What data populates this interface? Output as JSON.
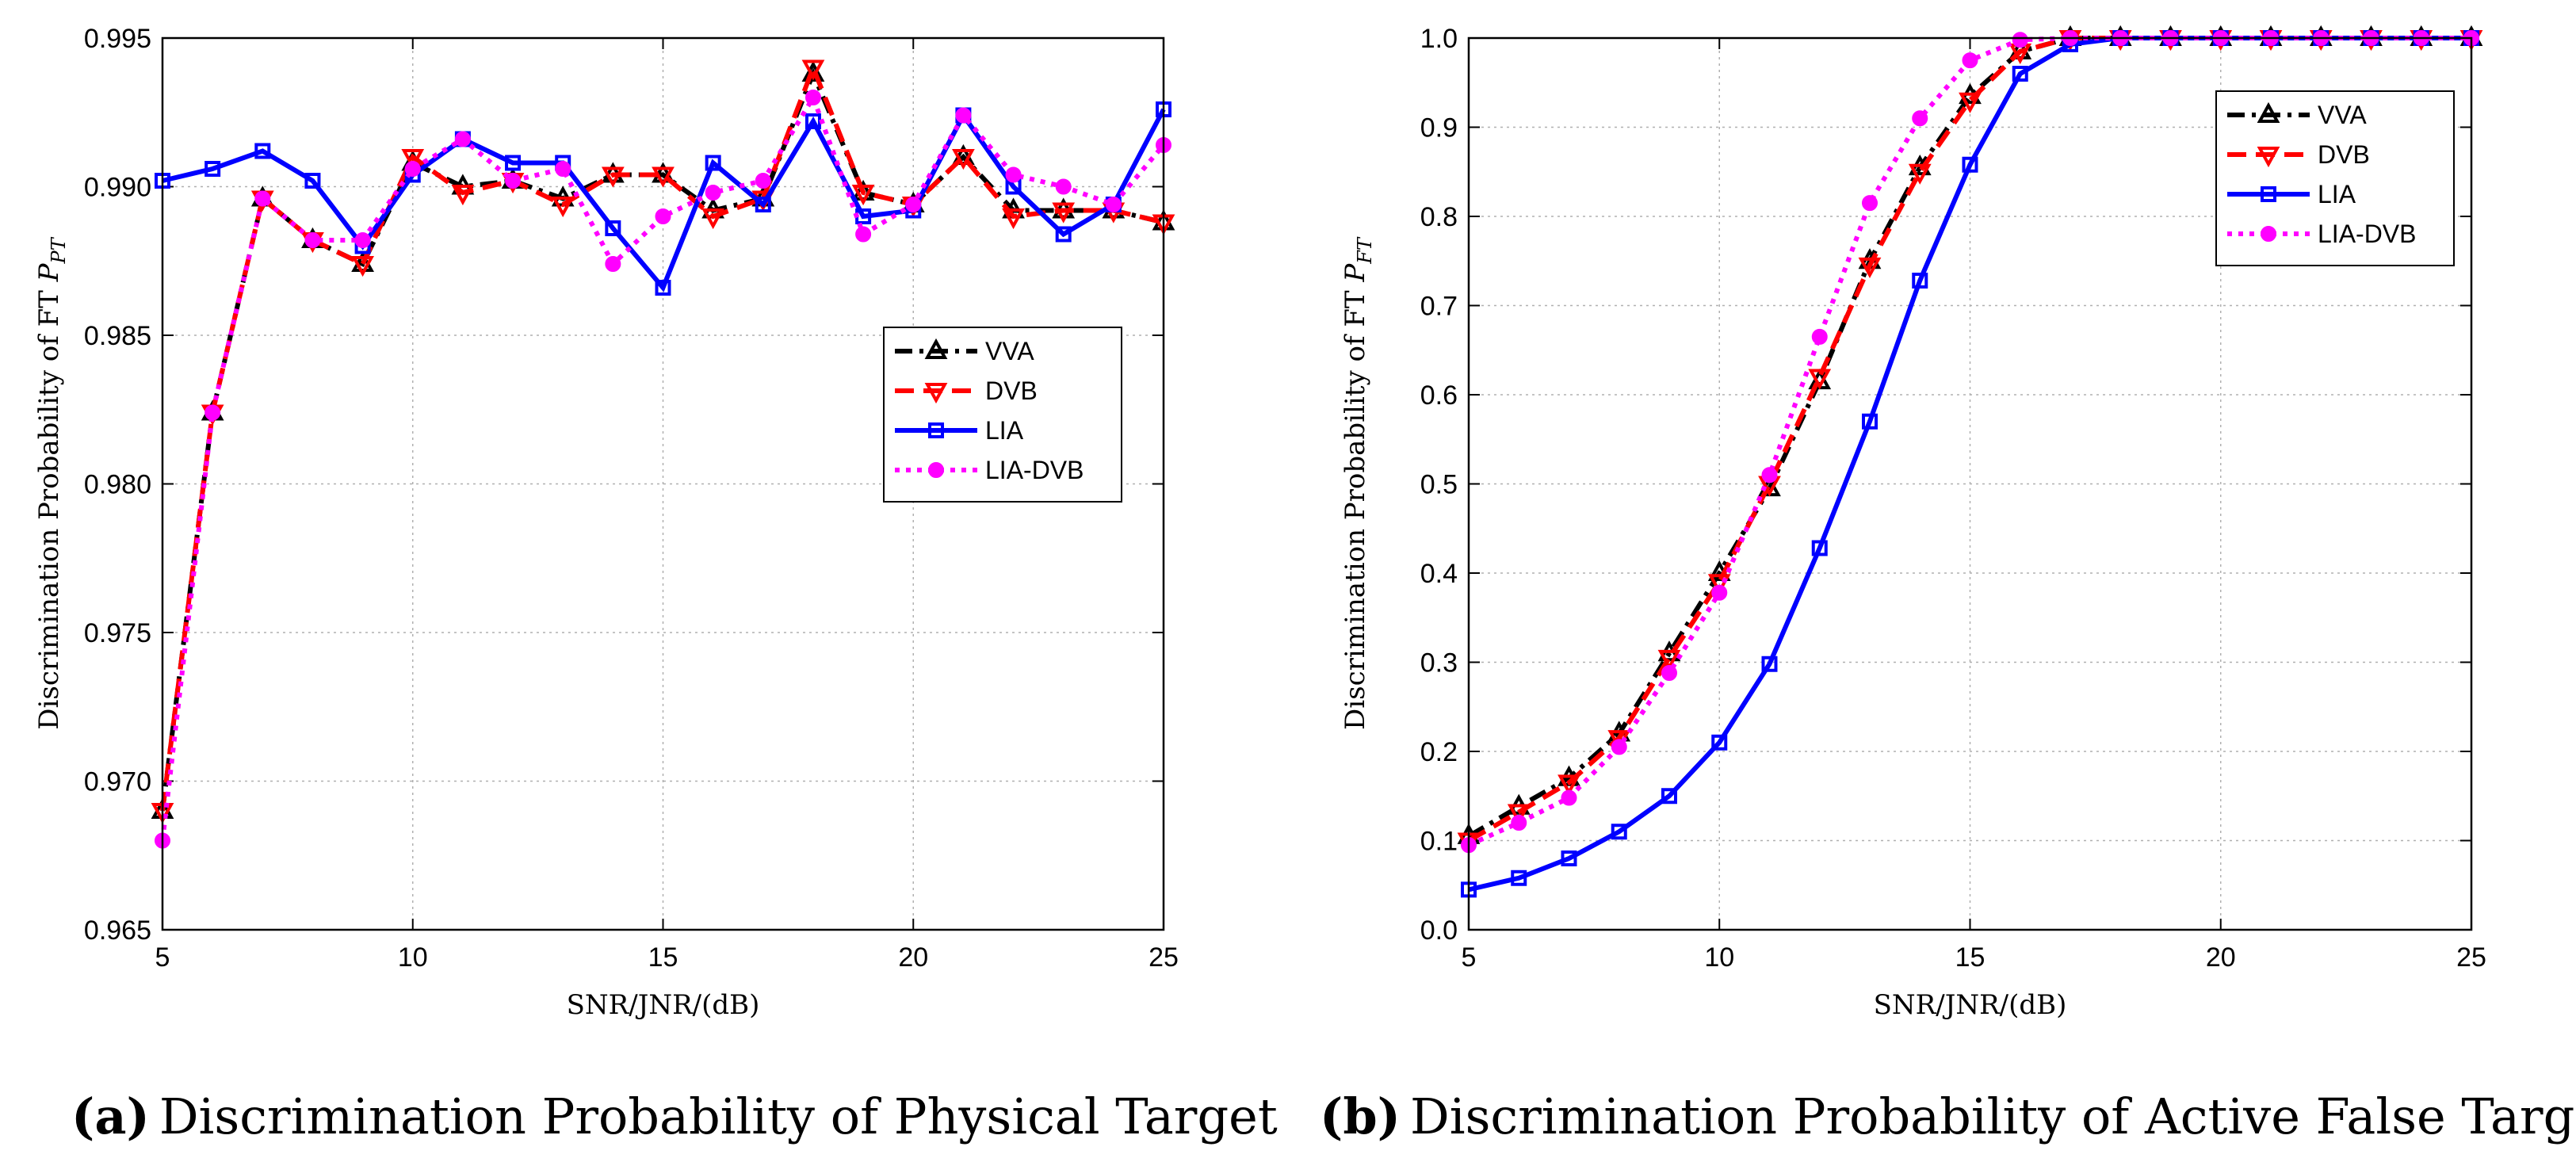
{
  "chart_data": [
    {
      "type": "line",
      "caption_letter": "(a)",
      "caption": "Discrimination Probability of Physical Target",
      "xlabel": "SNR/JNR/(dB)",
      "ylabel": "Discrimination Probability of FT P_PT",
      "ylabel_plain": "Discrimination Probability of FT ",
      "ylabel_math": "P",
      "ylabel_sub": "PT",
      "xlim": [
        5,
        25
      ],
      "ylim": [
        0.965,
        0.995
      ],
      "xticks": [
        5,
        10,
        15,
        20,
        25
      ],
      "yticks": [
        0.965,
        0.97,
        0.975,
        0.98,
        0.985,
        0.99,
        0.995
      ],
      "ytick_labels": [
        "0.965",
        "0.970",
        "0.975",
        "0.980",
        "0.985",
        "0.990",
        "0.995"
      ],
      "grid": true,
      "legend_position": "center-right",
      "x": [
        5,
        6,
        7,
        8,
        9,
        10,
        11,
        12,
        13,
        14,
        15,
        16,
        17,
        18,
        19,
        20,
        21,
        22,
        23,
        24,
        25
      ],
      "series": [
        {
          "name": "VVA",
          "color": "#000000",
          "dash": "dash-dot",
          "marker": "triangle-up",
          "values": [
            0.969,
            0.9824,
            0.9896,
            0.9882,
            0.9874,
            0.9908,
            0.99,
            0.9902,
            0.9896,
            0.9904,
            0.9904,
            0.9892,
            0.9896,
            0.9938,
            0.9898,
            0.9894,
            0.991,
            0.9892,
            0.9892,
            0.9892,
            0.9888
          ]
        },
        {
          "name": "DVB",
          "color": "#ff0000",
          "dash": "dashed",
          "marker": "triangle-down",
          "values": [
            0.969,
            0.9824,
            0.9896,
            0.9882,
            0.9874,
            0.991,
            0.9898,
            0.9902,
            0.9894,
            0.9904,
            0.9904,
            0.989,
            0.9896,
            0.994,
            0.9898,
            0.9894,
            0.991,
            0.989,
            0.9892,
            0.9892,
            0.9888
          ]
        },
        {
          "name": "LIA",
          "color": "#0000ff",
          "dash": "solid",
          "marker": "square",
          "values": [
            0.9902,
            0.9906,
            0.9912,
            0.9902,
            0.988,
            0.9904,
            0.9916,
            0.9908,
            0.9908,
            0.9886,
            0.9866,
            0.9908,
            0.9894,
            0.9922,
            0.989,
            0.9892,
            0.9924,
            0.99,
            0.9884,
            0.9894,
            0.9926
          ]
        },
        {
          "name": "LIA-DVB",
          "color": "#ff00ff",
          "dash": "dotted",
          "marker": "circle",
          "values": [
            0.968,
            0.9824,
            0.9896,
            0.9882,
            0.9882,
            0.9906,
            0.9916,
            0.9902,
            0.9906,
            0.9874,
            0.989,
            0.9898,
            0.9902,
            0.993,
            0.9884,
            0.9894,
            0.9924,
            0.9904,
            0.99,
            0.9894,
            0.9914
          ]
        }
      ]
    },
    {
      "type": "line",
      "caption_letter": "(b)",
      "caption": "Discrimination Probability of Active False Target",
      "xlabel": "SNR/JNR/(dB)",
      "ylabel": "Discrimination Probability of FT P_FT",
      "ylabel_plain": "Discrimination Probability of FT ",
      "ylabel_math": "P",
      "ylabel_sub": "FT",
      "xlim": [
        5,
        25
      ],
      "ylim": [
        0,
        1
      ],
      "xticks": [
        5,
        10,
        15,
        20,
        25
      ],
      "yticks": [
        0,
        0.1,
        0.2,
        0.3,
        0.4,
        0.5,
        0.6,
        0.7,
        0.8,
        0.9,
        1.0
      ],
      "ytick_labels": [
        "0.0",
        "0.1",
        "0.2",
        "0.3",
        "0.4",
        "0.5",
        "0.6",
        "0.7",
        "0.8",
        "0.9",
        "1.0"
      ],
      "grid": true,
      "legend_position": "top-right",
      "x": [
        5,
        6,
        7,
        8,
        9,
        10,
        11,
        12,
        13,
        14,
        15,
        16,
        17,
        18,
        19,
        20,
        21,
        22,
        23,
        24,
        25
      ],
      "series": [
        {
          "name": "VVA",
          "color": "#000000",
          "dash": "dash-dot",
          "marker": "triangle-up",
          "values": [
            0.105,
            0.138,
            0.17,
            0.22,
            0.31,
            0.4,
            0.495,
            0.615,
            0.75,
            0.855,
            0.935,
            0.985,
            1.0,
            1.0,
            1.0,
            1.0,
            1.0,
            1.0,
            1.0,
            1.0,
            1.0
          ]
        },
        {
          "name": "DVB",
          "color": "#ff0000",
          "dash": "dashed",
          "marker": "triangle-down",
          "values": [
            0.1,
            0.132,
            0.165,
            0.215,
            0.305,
            0.39,
            0.5,
            0.62,
            0.745,
            0.85,
            0.93,
            0.985,
            1.0,
            1.0,
            1.0,
            1.0,
            1.0,
            1.0,
            1.0,
            1.0,
            1.0
          ]
        },
        {
          "name": "LIA",
          "color": "#0000ff",
          "dash": "solid",
          "marker": "square",
          "values": [
            0.045,
            0.058,
            0.08,
            0.11,
            0.15,
            0.21,
            0.298,
            0.428,
            0.57,
            0.728,
            0.858,
            0.96,
            0.993,
            1.0,
            1.0,
            1.0,
            1.0,
            1.0,
            1.0,
            1.0,
            1.0
          ]
        },
        {
          "name": "LIA-DVB",
          "color": "#ff00ff",
          "dash": "dotted",
          "marker": "circle",
          "values": [
            0.095,
            0.12,
            0.148,
            0.205,
            0.288,
            0.378,
            0.51,
            0.665,
            0.815,
            0.91,
            0.975,
            0.998,
            1.0,
            1.0,
            1.0,
            1.0,
            1.0,
            1.0,
            1.0,
            1.0,
            1.0
          ]
        }
      ]
    }
  ]
}
